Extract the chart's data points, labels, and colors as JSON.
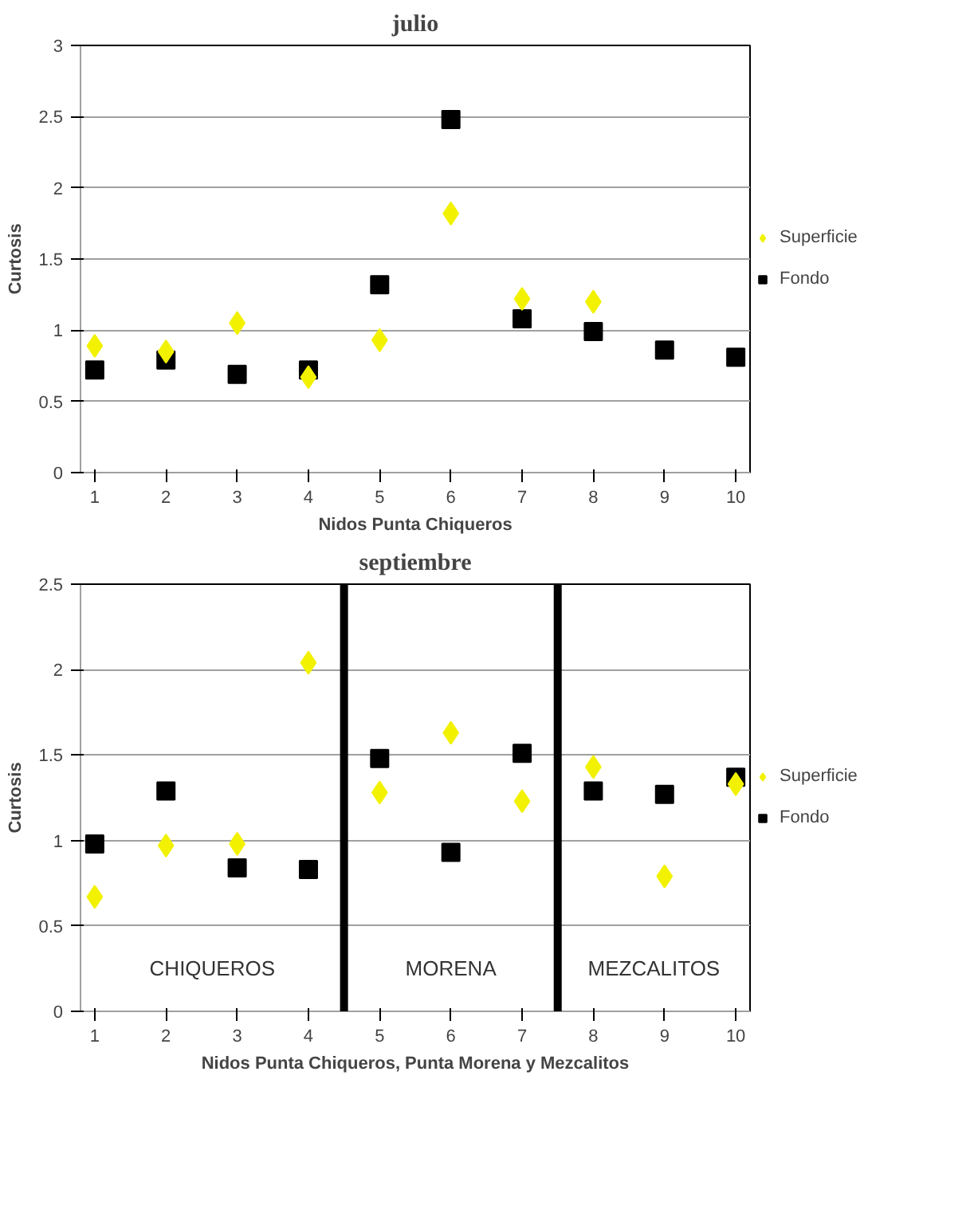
{
  "chart_data": [
    {
      "type": "scatter",
      "title": "julio",
      "xlabel": "Nidos Punta Chiqueros",
      "ylabel": "Curtosis",
      "x": [
        1,
        2,
        3,
        4,
        5,
        6,
        7,
        8,
        9,
        10
      ],
      "xlim": [
        0.8,
        10.2
      ],
      "xticks": [
        1,
        2,
        3,
        4,
        5,
        6,
        7,
        8,
        9,
        10
      ],
      "ylim": [
        0,
        3
      ],
      "yticks": [
        0,
        0.5,
        1,
        1.5,
        2,
        2.5,
        3
      ],
      "grid": "y",
      "legend": "right",
      "series": [
        {
          "name": "Superficie",
          "color": "#f2f200",
          "marker": "diamond",
          "values": [
            0.89,
            0.85,
            1.05,
            0.67,
            0.93,
            1.82,
            1.22,
            1.2,
            null,
            null
          ]
        },
        {
          "name": "Fondo",
          "color": "#000000",
          "marker": "square",
          "values": [
            0.72,
            0.79,
            0.69,
            0.72,
            1.32,
            2.48,
            1.08,
            0.99,
            0.86,
            0.81
          ]
        }
      ]
    },
    {
      "type": "scatter",
      "title": "septiembre",
      "xlabel": "Nidos Punta Chiqueros, Punta Morena y Mezcalitos",
      "ylabel": "Curtosis",
      "x": [
        1,
        2,
        3,
        4,
        5,
        6,
        7,
        8,
        9,
        10
      ],
      "xlim": [
        0.8,
        10.2
      ],
      "xticks": [
        1,
        2,
        3,
        4,
        5,
        6,
        7,
        8,
        9,
        10
      ],
      "ylim": [
        0,
        2.5
      ],
      "yticks": [
        0,
        0.5,
        1,
        1.5,
        2,
        2.5
      ],
      "grid": "y",
      "legend": "right",
      "ref_lines": [
        {
          "axis": "x",
          "value": 4.5,
          "color": "#000000"
        },
        {
          "axis": "x",
          "value": 7.5,
          "color": "#000000"
        }
      ],
      "annotations": [
        "CHIQUEROS",
        "MORENA",
        "MEZCALITOS"
      ],
      "series": [
        {
          "name": "Superficie",
          "color": "#f2f200",
          "marker": "diamond",
          "values": [
            0.67,
            0.97,
            0.98,
            2.04,
            1.28,
            1.63,
            1.23,
            1.43,
            0.79,
            1.33
          ]
        },
        {
          "name": "Fondo",
          "color": "#000000",
          "marker": "square",
          "values": [
            0.98,
            1.29,
            0.84,
            0.83,
            1.48,
            0.93,
            1.51,
            1.29,
            1.27,
            1.37
          ]
        }
      ]
    }
  ]
}
